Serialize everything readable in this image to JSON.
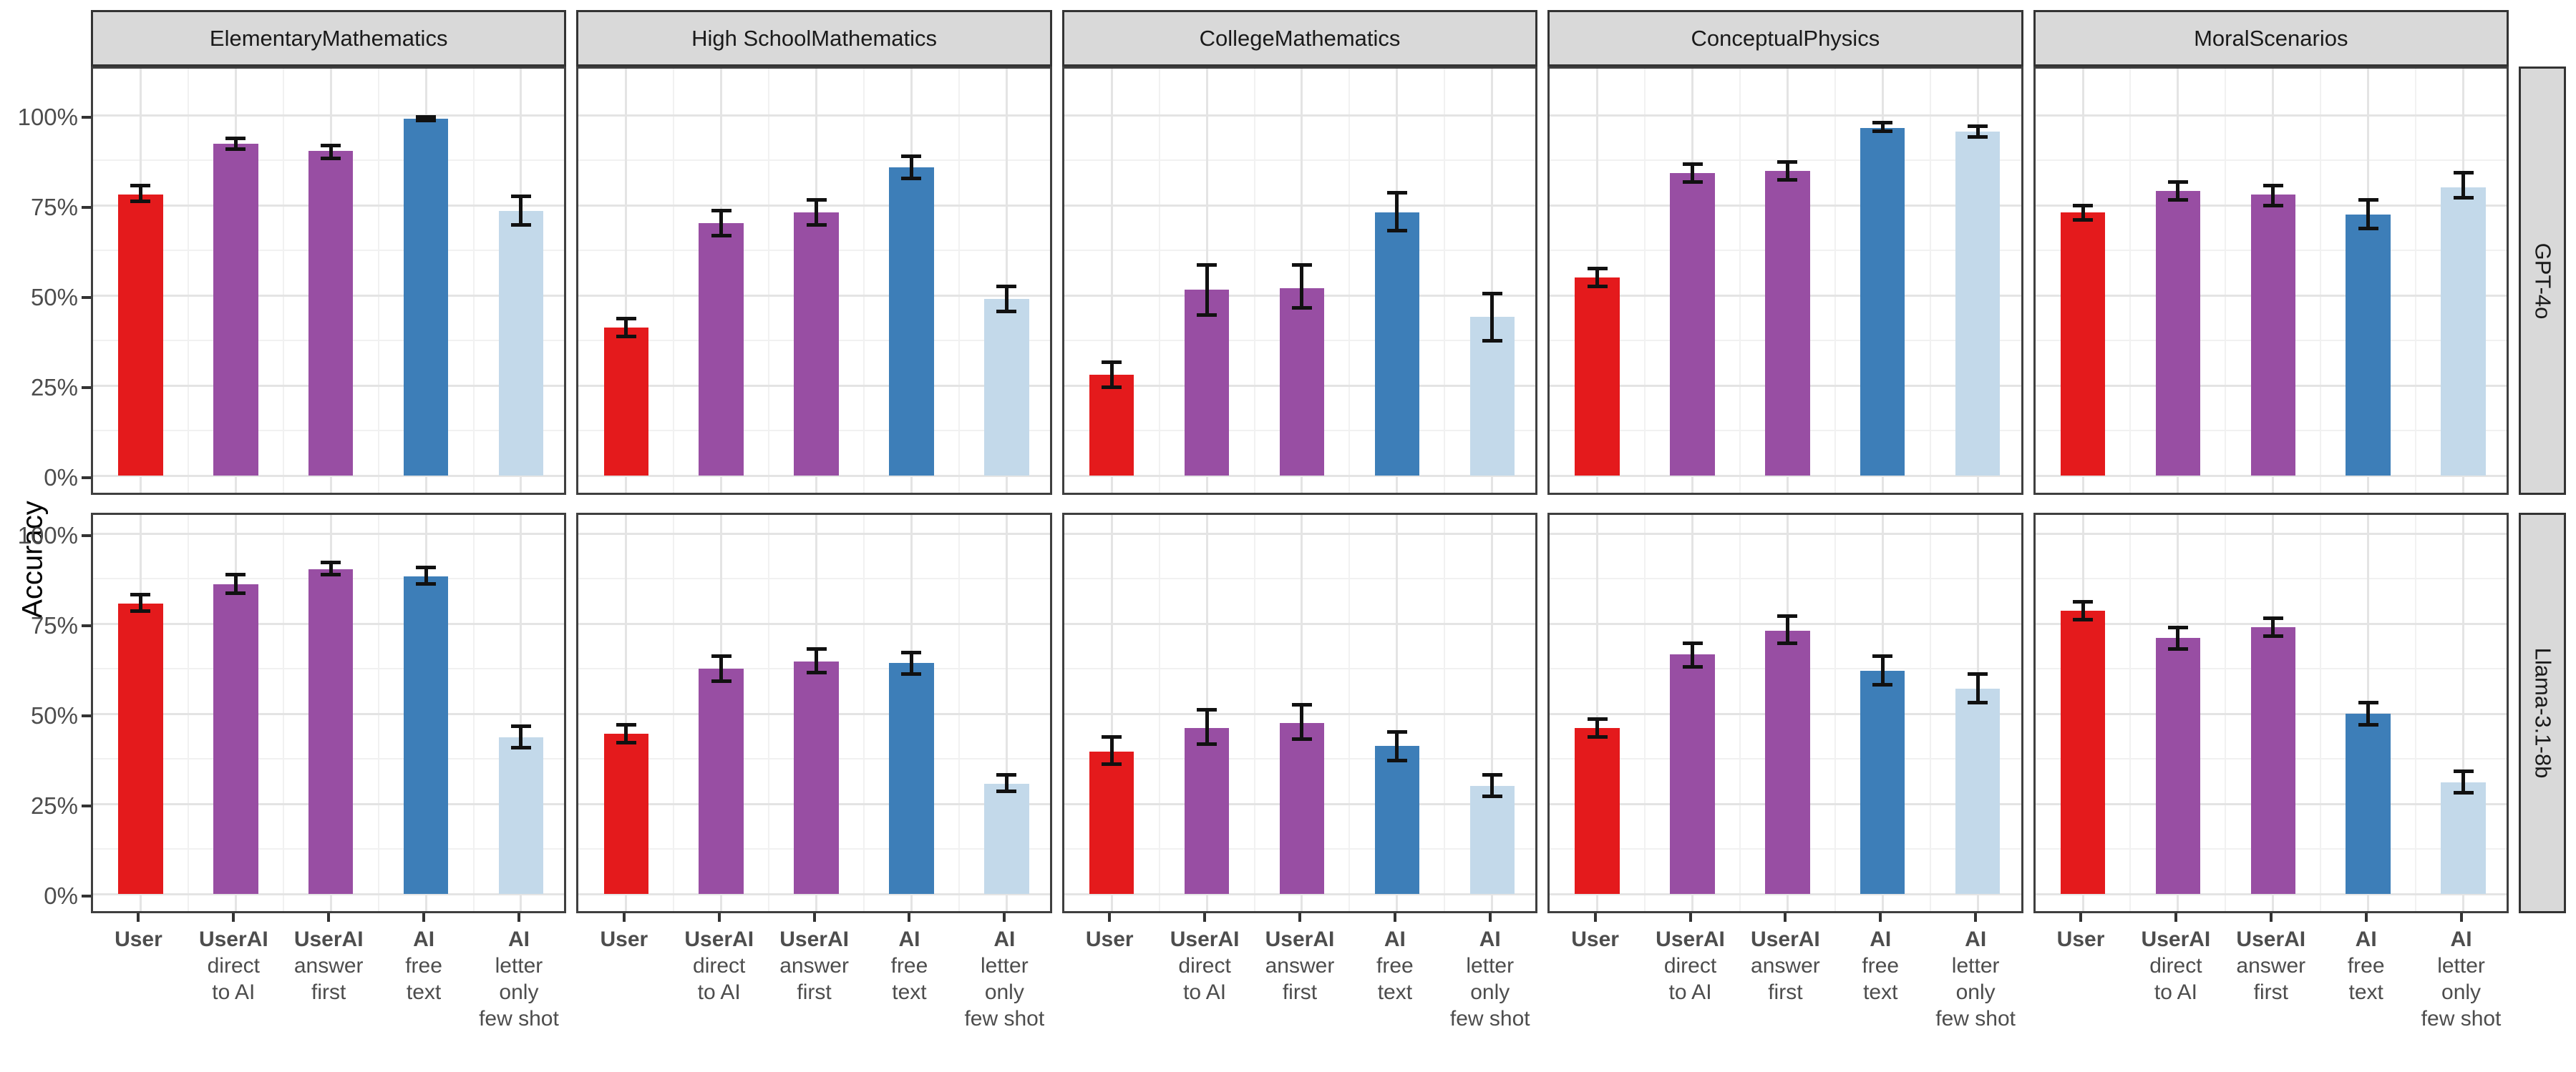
{
  "chart_data": {
    "type": "bar",
    "title": "",
    "ylabel": "Accuracy",
    "ylim": [
      0,
      100
    ],
    "grid": true,
    "y_ticks": [
      {
        "value": 0,
        "label": "0%"
      },
      {
        "value": 25,
        "label": "25%"
      },
      {
        "value": 50,
        "label": "50%"
      },
      {
        "value": 75,
        "label": "75%"
      },
      {
        "value": 100,
        "label": "100%"
      }
    ],
    "facet_columns": [
      {
        "lines": [
          "Elementary",
          "Mathematics"
        ]
      },
      {
        "lines": [
          "High School",
          "Mathematics"
        ]
      },
      {
        "lines": [
          "College",
          "Mathematics"
        ]
      },
      {
        "lines": [
          "Conceptual",
          "Physics"
        ]
      },
      {
        "lines": [
          "Moral",
          "Scenarios"
        ]
      }
    ],
    "facet_rows": [
      "GPT-4o",
      "Llama-3.1-8b"
    ],
    "categories": [
      {
        "bold": "User",
        "rest": []
      },
      {
        "bold": "UserAI",
        "rest": [
          "direct",
          "to AI"
        ]
      },
      {
        "bold": "UserAI",
        "rest": [
          "answer",
          "first"
        ]
      },
      {
        "bold": "AI",
        "rest": [
          "free",
          "text"
        ]
      },
      {
        "bold": "AI",
        "rest": [
          "letter",
          "only",
          "few shot"
        ]
      }
    ],
    "bar_colors": [
      "#e41a1c",
      "#984ea3",
      "#984ea3",
      "#3d7eb8",
      "#c3d9ea"
    ],
    "error_bar_color": "#111111",
    "panels": [
      {
        "row": "GPT-4o",
        "col": "Elementary Mathematics",
        "values": [
          78,
          92,
          90,
          99,
          73.5
        ],
        "err_lo": [
          75.5,
          90,
          87.5,
          98,
          69
        ],
        "err_hi": [
          81,
          94,
          92,
          100,
          78
        ]
      },
      {
        "row": "GPT-4o",
        "col": "High School Mathematics",
        "values": [
          41,
          70,
          73,
          85.5,
          49
        ],
        "err_lo": [
          38,
          66,
          69,
          82,
          45
        ],
        "err_hi": [
          44,
          74,
          77,
          89,
          53
        ]
      },
      {
        "row": "GPT-4o",
        "col": "College Mathematics",
        "values": [
          28,
          51.5,
          52,
          73,
          44
        ],
        "err_lo": [
          24,
          44,
          46,
          67.5,
          37
        ],
        "err_hi": [
          32,
          59,
          59,
          79,
          51
        ]
      },
      {
        "row": "GPT-4o",
        "col": "Conceptual Physics",
        "values": [
          55,
          84,
          84.5,
          96.5,
          95.5
        ],
        "err_lo": [
          52,
          81,
          81.5,
          95,
          93.5
        ],
        "err_hi": [
          58,
          87,
          87.5,
          98.5,
          97.5
        ]
      },
      {
        "row": "GPT-4o",
        "col": "Moral Scenarios",
        "values": [
          73,
          79,
          78,
          72.5,
          80
        ],
        "err_lo": [
          70.5,
          76,
          74.5,
          68,
          76.5
        ],
        "err_hi": [
          75.5,
          82,
          81,
          77,
          84.5
        ]
      },
      {
        "row": "Llama-3.1-8b",
        "col": "Elementary Mathematics",
        "values": [
          80.5,
          86,
          90,
          88,
          43.5
        ],
        "err_lo": [
          78,
          83,
          88,
          85.5,
          40
        ],
        "err_hi": [
          83.5,
          89,
          92.5,
          91,
          47
        ]
      },
      {
        "row": "Llama-3.1-8b",
        "col": "High School Mathematics",
        "values": [
          44.5,
          62.5,
          64.5,
          64,
          30.5
        ],
        "err_lo": [
          41.5,
          58.5,
          61,
          60.5,
          28
        ],
        "err_hi": [
          47.5,
          66.5,
          68.5,
          67.5,
          33.5
        ]
      },
      {
        "row": "Llama-3.1-8b",
        "col": "College Mathematics",
        "values": [
          39.5,
          46,
          47.5,
          41,
          30
        ],
        "err_lo": [
          35.5,
          41,
          42.5,
          36.5,
          26.5
        ],
        "err_hi": [
          44,
          51.5,
          53,
          45.5,
          33.5
        ]
      },
      {
        "row": "Llama-3.1-8b",
        "col": "Conceptual Physics",
        "values": [
          46,
          66.5,
          73,
          62,
          57
        ],
        "err_lo": [
          43,
          62.5,
          69,
          57.5,
          52.5
        ],
        "err_hi": [
          49,
          70,
          77.5,
          66.5,
          61.5
        ]
      },
      {
        "row": "Llama-3.1-8b",
        "col": "Moral Scenarios",
        "values": [
          78.5,
          71,
          74,
          50,
          31
        ],
        "err_lo": [
          75.5,
          67.5,
          71,
          46.5,
          27.5
        ],
        "err_hi": [
          81.5,
          74.5,
          77,
          53.5,
          34.5
        ]
      }
    ]
  }
}
